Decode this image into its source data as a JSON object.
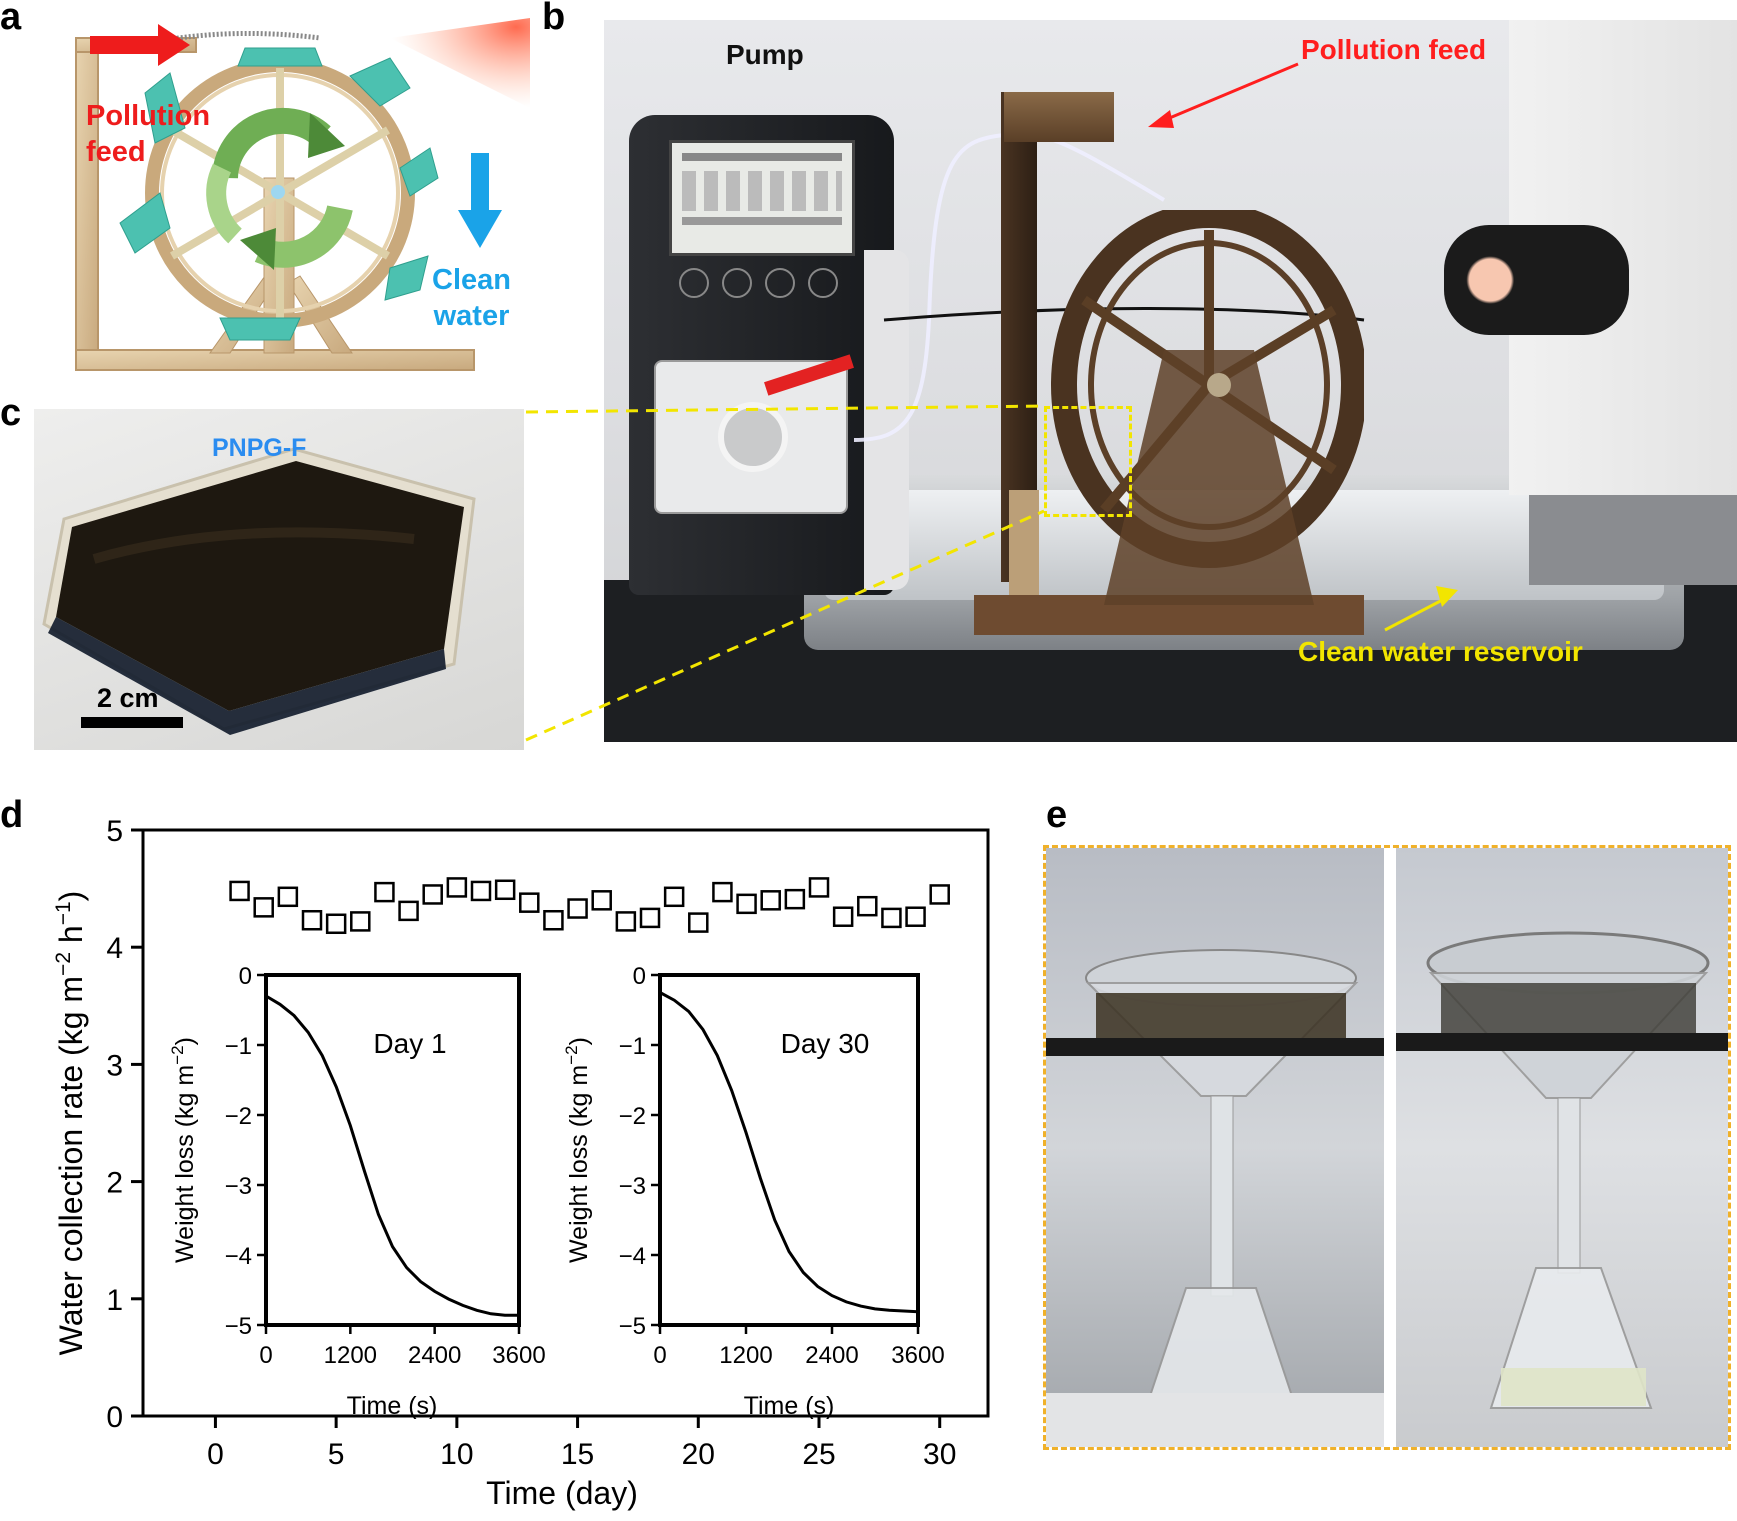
{
  "panels": {
    "a": {
      "letter": "a",
      "labels": {
        "pollution_feed": "Pollution\nfeed",
        "clean_water": "Clean\nwater"
      },
      "colors": {
        "arrow_red": "#ee1c1c",
        "arrow_blue": "#1aa3e8",
        "wheel": "#d9c09b",
        "vanes": "#4cc1b0",
        "cycle": "#5e9c4a"
      }
    },
    "b": {
      "letter": "b",
      "labels": {
        "pump": "Pump",
        "pollution_feed": "Pollution feed",
        "reservoir": "Clean water reservoir"
      },
      "colors": {
        "pollution_label": "#ff1e1e",
        "reservoir_label": "#f2e500",
        "callout": "#f2e500"
      }
    },
    "c": {
      "letter": "c",
      "labels": {
        "material": "PNPG-F",
        "scale_bar": "2 cm"
      },
      "colors": {
        "material_label": "#2a8cf0"
      }
    },
    "d": {
      "letter": "d"
    },
    "e": {
      "letter": "e",
      "colors": {
        "frame": "#f0b12a"
      }
    }
  },
  "chart_data": [
    {
      "type": "scatter",
      "panel": "d",
      "marker": "open-square",
      "xlabel": "Time (day)",
      "ylabel_parts": {
        "base": "Water collection rate (kg m",
        "exp1": "−2",
        "mid": " h",
        "exp2": "−1",
        "end": ")"
      },
      "xlim": [
        -3,
        32
      ],
      "ylim": [
        0,
        5
      ],
      "xticks": [
        0,
        5,
        10,
        15,
        20,
        25,
        30
      ],
      "yticks": [
        0,
        1,
        2,
        3,
        4,
        5
      ],
      "x": [
        1,
        2,
        3,
        4,
        5,
        6,
        7,
        8,
        9,
        10,
        11,
        12,
        13,
        14,
        15,
        16,
        17,
        18,
        19,
        20,
        21,
        22,
        23,
        24,
        25,
        26,
        27,
        28,
        29,
        30
      ],
      "y": [
        4.48,
        4.34,
        4.43,
        4.23,
        4.2,
        4.22,
        4.47,
        4.31,
        4.45,
        4.51,
        4.48,
        4.49,
        4.38,
        4.23,
        4.33,
        4.4,
        4.22,
        4.25,
        4.43,
        4.21,
        4.47,
        4.37,
        4.4,
        4.41,
        4.51,
        4.26,
        4.35,
        4.25,
        4.26,
        4.45
      ]
    },
    {
      "type": "line",
      "panel": "d-inset-1",
      "label": "Day 1",
      "xlabel": "Time (s)",
      "ylabel_parts": {
        "base": "Weight loss (kg m",
        "exp": "−2",
        "end": ")"
      },
      "xlim": [
        0,
        3600
      ],
      "ylim": [
        -5,
        0
      ],
      "xticks": [
        0,
        1200,
        2400,
        3600
      ],
      "yticks": [
        0,
        -1,
        -2,
        -3,
        -4,
        -5
      ],
      "ytick_labels": [
        "0",
        "−1",
        "−2",
        "−3",
        "−4",
        "−5"
      ],
      "x": [
        0,
        200,
        400,
        600,
        800,
        1000,
        1200,
        1400,
        1600,
        1800,
        2000,
        2200,
        2400,
        2600,
        2800,
        3000,
        3200,
        3400,
        3600
      ],
      "y": [
        -0.3,
        -0.42,
        -0.58,
        -0.82,
        -1.15,
        -1.6,
        -2.15,
        -2.8,
        -3.42,
        -3.88,
        -4.18,
        -4.38,
        -4.52,
        -4.63,
        -4.72,
        -4.79,
        -4.84,
        -4.86,
        -4.86
      ]
    },
    {
      "type": "line",
      "panel": "d-inset-2",
      "label": "Day 30",
      "xlabel": "Time (s)",
      "ylabel_parts": {
        "base": "Weight loss (kg m",
        "exp": "−2",
        "end": ")"
      },
      "xlim": [
        0,
        3600
      ],
      "ylim": [
        -5,
        0
      ],
      "xticks": [
        0,
        1200,
        2400,
        3600
      ],
      "yticks": [
        0,
        -1,
        -2,
        -3,
        -4,
        -5
      ],
      "ytick_labels": [
        "0",
        "−1",
        "−2",
        "−3",
        "−4",
        "−5"
      ],
      "x": [
        0,
        200,
        400,
        600,
        800,
        1000,
        1200,
        1400,
        1600,
        1800,
        2000,
        2200,
        2400,
        2600,
        2800,
        3000,
        3200,
        3400,
        3600
      ],
      "y": [
        -0.25,
        -0.36,
        -0.52,
        -0.78,
        -1.15,
        -1.65,
        -2.25,
        -2.9,
        -3.5,
        -3.95,
        -4.25,
        -4.45,
        -4.58,
        -4.67,
        -4.73,
        -4.77,
        -4.79,
        -4.8,
        -4.81
      ]
    }
  ]
}
